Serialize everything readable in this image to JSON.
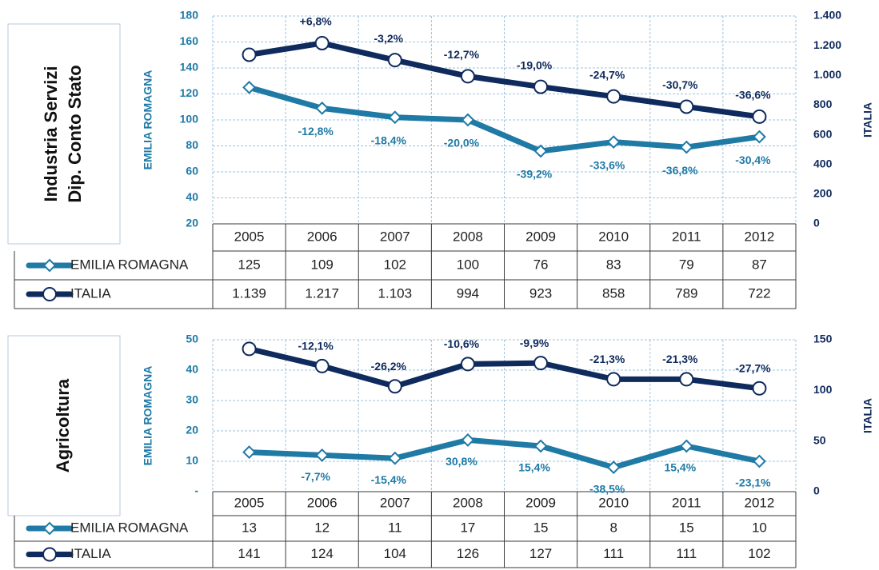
{
  "chart_data": [
    {
      "type": "line",
      "panel_label": [
        "Industria  Servizi",
        "Dip. Conto Stato"
      ],
      "ylabel": "EMILIA ROMAGNA",
      "y2label": "ITALIA",
      "categories": [
        "2005",
        "2006",
        "2007",
        "2008",
        "2009",
        "2010",
        "2011",
        "2012"
      ],
      "ylim": [
        20,
        180
      ],
      "yticks": [
        20,
        40,
        60,
        80,
        100,
        120,
        140,
        160,
        180
      ],
      "y2lim": [
        0,
        1400
      ],
      "y2ticks": [
        0,
        200,
        400,
        600,
        800,
        {
          "value": 1000,
          "label": "1.000"
        },
        {
          "value": 1200,
          "label": "1.200"
        },
        {
          "value": 1400,
          "label": "1.400"
        }
      ],
      "grid": true,
      "series": [
        {
          "name": "EMILIA ROMAGNA",
          "color": "#1f7aa6",
          "marker": "diamond",
          "values": [
            125,
            109,
            102,
            100,
            76,
            83,
            79,
            87
          ],
          "change_labels": [
            null,
            "-12,8%",
            "-18,4%",
            "-20,0%",
            "-39,2%",
            "-33,6%",
            "-36,8%",
            "-30,4%"
          ]
        },
        {
          "name": "ITALIA",
          "color": "#0f2a5c",
          "marker": "circle",
          "axis": "y2",
          "values": [
            1139,
            1217,
            1103,
            994,
            923,
            858,
            789,
            722
          ],
          "value_labels": [
            "1.139",
            "1.217",
            "1.103",
            "994",
            "923",
            "858",
            "789",
            "722"
          ],
          "change_labels": [
            null,
            "+6,8%",
            "-3,2%",
            "-12,7%",
            "-19,0%",
            "-24,7%",
            "-30,7%",
            "-36,6%"
          ]
        }
      ]
    },
    {
      "type": "line",
      "panel_label": [
        "Agricoltura"
      ],
      "ylabel": "EMILIA ROMAGNA",
      "y2label": "ITALIA",
      "categories": [
        "2005",
        "2006",
        "2007",
        "2008",
        "2009",
        "2010",
        "2011",
        "2012"
      ],
      "ylim": [
        0,
        50
      ],
      "yticks": [
        {
          "value": 0,
          "label": "-"
        },
        10,
        20,
        30,
        40,
        50
      ],
      "y2lim": [
        0,
        150
      ],
      "y2ticks": [
        0,
        50,
        100,
        150
      ],
      "grid": true,
      "series": [
        {
          "name": "EMILIA ROMAGNA",
          "color": "#1f7aa6",
          "marker": "diamond",
          "values": [
            13,
            12,
            11,
            17,
            15,
            8,
            15,
            10
          ],
          "change_labels": [
            null,
            "-7,7%",
            "-15,4%",
            "30,8%",
            "15,4%",
            "-38,5%",
            "15,4%",
            "-23,1%"
          ]
        },
        {
          "name": "ITALIA",
          "color": "#0f2a5c",
          "marker": "circle",
          "axis": "y2",
          "values": [
            141,
            124,
            104,
            126,
            127,
            111,
            111,
            102
          ],
          "change_labels": [
            null,
            "-12,1%",
            "-26,2%",
            "-10,6%",
            "-9,9%",
            "-21,3%",
            "-21,3%",
            "-27,7%"
          ]
        }
      ]
    }
  ]
}
